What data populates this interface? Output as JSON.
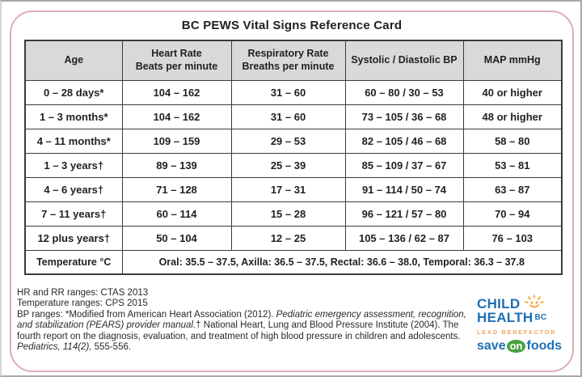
{
  "title": "BC PEWS Vital Signs Reference Card",
  "table": {
    "headers": [
      {
        "line1": "Age",
        "line2": ""
      },
      {
        "line1": "Heart Rate",
        "line2": "Beats per minute"
      },
      {
        "line1": "Respiratory Rate",
        "line2": "Breaths per minute"
      },
      {
        "line1": "Systolic / Diastolic BP",
        "line2": ""
      },
      {
        "line1": "MAP mmHg",
        "line2": ""
      }
    ],
    "rows": [
      {
        "age": "0 – 28 days*",
        "hr": "104 – 162",
        "rr": "31 – 60",
        "bp": "60 – 80 / 30 – 53",
        "map": "40 or higher"
      },
      {
        "age": "1 – 3 months*",
        "hr": "104 – 162",
        "rr": "31 – 60",
        "bp": "73 – 105 / 36 – 68",
        "map": "48 or higher"
      },
      {
        "age": "4 – 11 months*",
        "hr": "109 – 159",
        "rr": "29 – 53",
        "bp": "82 – 105 / 46 – 68",
        "map": "58 – 80"
      },
      {
        "age": "1 – 3 years†",
        "hr": "89 – 139",
        "rr": "25 – 39",
        "bp": "85 – 109 / 37 – 67",
        "map": "53 – 81"
      },
      {
        "age": "4 – 6 years†",
        "hr": "71 – 128",
        "rr": "17 – 31",
        "bp": "91 – 114 / 50 – 74",
        "map": "63 – 87"
      },
      {
        "age": "7 – 11 years†",
        "hr": "60 – 114",
        "rr": "15 – 28",
        "bp": "96 – 121 / 57 – 80",
        "map": "70 – 94"
      },
      {
        "age": "12 plus years†",
        "hr": "50 – 104",
        "rr": "12 – 25",
        "bp": "105 – 136 / 62 – 87",
        "map": "76 – 103"
      }
    ],
    "temperature": {
      "label": "Temperature °C",
      "value": "Oral: 35.5 – 37.5, Axilla: 36.5 – 37.5, Rectal: 36.6 – 38.0, Temporal: 36.3 – 37.8"
    }
  },
  "footnotes": {
    "line1": "HR and RR ranges: CTAS 2013",
    "line2": "Temperature ranges: CPS 2015",
    "bp_segments": [
      {
        "text": "BP ranges: *Modified from American Heart Association (2012). ",
        "italic": false
      },
      {
        "text": "Pediatric emergency assessment, recognition, and stabilization (PEARS) provider manual.",
        "italic": true
      },
      {
        "text": "† National Heart, Lung and Blood Pressure Institute (2004). The fourth report on the diagnosis, evaluation, and treatment of high blood pressure in children and adolescents. ",
        "italic": false
      },
      {
        "text": "Pediatrics, 114(2),",
        "italic": true
      },
      {
        "text": " 555-556.",
        "italic": false
      }
    ]
  },
  "logos": {
    "child_health": {
      "word1": "CHILD",
      "word2": "HEALTH",
      "suffix": "BC",
      "icon": "sun-face-icon"
    },
    "lead_benefactor": "LEAD BENEFACTOR",
    "save_on_foods": {
      "save": "save",
      "on": "on",
      "foods": "foods"
    }
  },
  "colors": {
    "card_border": "#dcaeb4",
    "header_bg": "#d9d9d9",
    "table_border": "#3b3b3b",
    "brand_blue": "#1d6fb5",
    "sun_orange": "#f49c1e",
    "benefactor_orange": "#f0a562",
    "foods_green": "#47a23f"
  }
}
